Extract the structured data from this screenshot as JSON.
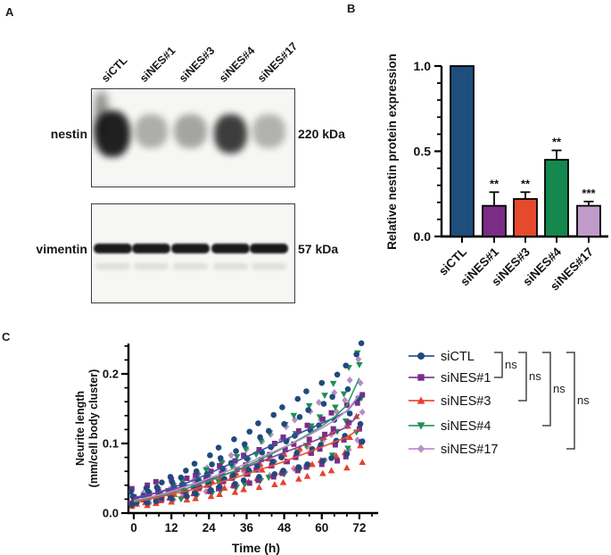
{
  "panels": {
    "a": "A",
    "b": "B",
    "c": "C"
  },
  "panel_a": {
    "lanes": [
      "siCTL",
      "siNES#1",
      "siNES#3",
      "siNES#4",
      "siNES#17"
    ],
    "blots": [
      {
        "protein": "nestin",
        "mw": "220 kDa",
        "style": "smear",
        "band_intensities": [
          0.95,
          0.32,
          0.36,
          0.82,
          0.3
        ]
      },
      {
        "protein": "vimentin",
        "mw": "57 kDa",
        "style": "sharp",
        "band_intensities": [
          0.94,
          0.94,
          0.94,
          0.94,
          0.95
        ]
      }
    ]
  },
  "chart_data": [
    {
      "panel": "B",
      "type": "bar",
      "ylabel": "Relative nestin protein expression",
      "categories": [
        "siCTL",
        "siNES#1",
        "siNES#3",
        "siNES#4",
        "siNES#17"
      ],
      "values": [
        1.0,
        0.18,
        0.22,
        0.45,
        0.18
      ],
      "errors": [
        0,
        0.08,
        0.04,
        0.055,
        0.025
      ],
      "sig": [
        "",
        "**",
        "**",
        "**",
        "***"
      ],
      "colors": [
        "#1d4e7c",
        "#7b2d86",
        "#e54a2d",
        "#14884e",
        "#c09bca"
      ],
      "ylim": [
        0,
        1.0
      ],
      "yticks": [
        0.0,
        0.5,
        1.0
      ],
      "yminor": 0.1,
      "grid": false
    },
    {
      "panel": "C",
      "type": "scatter-line",
      "xlabel": "Time (h)",
      "ylabel_line1": "Neurite length",
      "ylabel_line2": "(mm/cell body cluster)",
      "x": [
        0,
        4,
        8,
        12,
        16,
        20,
        24,
        28,
        32,
        36,
        40,
        44,
        48,
        52,
        56,
        60,
        64,
        68,
        72
      ],
      "xticks": [
        0,
        12,
        24,
        36,
        48,
        60,
        72
      ],
      "xminor_step": 4,
      "xmax_axis": 78,
      "ylim": [
        0,
        0.25
      ],
      "yticks": [
        0.0,
        0.1,
        0.2
      ],
      "yminor": 0.02,
      "grid": false,
      "series": [
        {
          "name": "siCTL",
          "color": "#1f4a7d",
          "line_color": "#34549f",
          "marker": "circle",
          "mean": [
            0.02,
            0.025,
            0.03,
            0.036,
            0.042,
            0.049,
            0.057,
            0.065,
            0.073,
            0.081,
            0.089,
            0.097,
            0.105,
            0.113,
            0.121,
            0.129,
            0.137,
            0.146,
            0.168
          ],
          "replicates": [
            [
              0.031,
              0.036,
              0.044,
              0.052,
              0.061,
              0.071,
              0.083,
              0.094,
              0.106,
              0.117,
              0.129,
              0.141,
              0.152,
              0.164,
              0.175,
              0.187,
              0.199,
              0.212,
              0.244
            ],
            [
              0.024,
              0.031,
              0.037,
              0.044,
              0.051,
              0.06,
              0.07,
              0.079,
              0.089,
              0.099,
              0.109,
              0.118,
              0.128,
              0.138,
              0.148,
              0.157,
              0.167,
              0.178,
              0.228
            ],
            [
              0.02,
              0.025,
              0.029,
              0.035,
              0.041,
              0.048,
              0.056,
              0.064,
              0.072,
              0.079,
              0.087,
              0.095,
              0.103,
              0.111,
              0.119,
              0.126,
              0.134,
              0.143,
              0.165
            ],
            [
              0.015,
              0.019,
              0.023,
              0.027,
              0.032,
              0.037,
              0.043,
              0.049,
              0.055,
              0.062,
              0.068,
              0.074,
              0.08,
              0.086,
              0.092,
              0.098,
              0.104,
              0.111,
              0.128
            ],
            [
              0.012,
              0.015,
              0.017,
              0.021,
              0.024,
              0.028,
              0.033,
              0.038,
              0.042,
              0.047,
              0.052,
              0.056,
              0.061,
              0.066,
              0.07,
              0.075,
              0.079,
              0.085,
              0.103
            ]
          ]
        },
        {
          "name": "siNES#1",
          "color": "#7b2e87",
          "line_color": "#7a3f9d",
          "marker": "square",
          "mean": [
            0.022,
            0.026,
            0.03,
            0.034,
            0.038,
            0.043,
            0.048,
            0.054,
            0.06,
            0.066,
            0.073,
            0.08,
            0.087,
            0.094,
            0.101,
            0.108,
            0.115,
            0.124,
            0.142
          ],
          "replicates": [
            [
              0.035,
              0.04,
              0.045,
              0.048,
              0.05,
              0.054,
              0.06,
              0.068,
              0.075,
              0.083,
              0.091,
              0.1,
              0.109,
              0.118,
              0.126,
              0.135,
              0.144,
              0.155,
              0.17
            ],
            [
              0.023,
              0.027,
              0.032,
              0.036,
              0.04,
              0.045,
              0.05,
              0.057,
              0.063,
              0.069,
              0.077,
              0.084,
              0.091,
              0.099,
              0.106,
              0.113,
              0.121,
              0.13,
              0.158
            ],
            [
              0.019,
              0.022,
              0.026,
              0.029,
              0.032,
              0.037,
              0.041,
              0.046,
              0.051,
              0.056,
              0.062,
              0.068,
              0.074,
              0.08,
              0.086,
              0.092,
              0.098,
              0.105,
              0.121
            ],
            [
              0.014,
              0.017,
              0.02,
              0.022,
              0.025,
              0.028,
              0.031,
              0.035,
              0.039,
              0.043,
              0.047,
              0.052,
              0.057,
              0.061,
              0.066,
              0.07,
              0.075,
              0.081,
              0.102
            ]
          ]
        },
        {
          "name": "siNES#3",
          "color": "#e8402c",
          "line_color": "#e85038",
          "marker": "triangle-up",
          "mean": [
            0.016,
            0.019,
            0.023,
            0.027,
            0.031,
            0.035,
            0.04,
            0.045,
            0.05,
            0.056,
            0.062,
            0.068,
            0.074,
            0.081,
            0.088,
            0.095,
            0.102,
            0.109,
            0.121
          ],
          "replicates": [
            [
              0.018,
              0.022,
              0.026,
              0.031,
              0.036,
              0.04,
              0.046,
              0.052,
              0.058,
              0.064,
              0.071,
              0.078,
              0.085,
              0.093,
              0.101,
              0.109,
              0.117,
              0.125,
              0.139
            ],
            [
              0.016,
              0.019,
              0.023,
              0.027,
              0.031,
              0.035,
              0.04,
              0.045,
              0.05,
              0.056,
              0.062,
              0.068,
              0.074,
              0.081,
              0.088,
              0.095,
              0.102,
              0.109,
              0.121
            ],
            [
              0.013,
              0.015,
              0.018,
              0.022,
              0.025,
              0.028,
              0.032,
              0.036,
              0.04,
              0.045,
              0.05,
              0.054,
              0.059,
              0.065,
              0.07,
              0.076,
              0.082,
              0.087,
              0.097
            ],
            [
              0.01,
              0.011,
              0.014,
              0.016,
              0.019,
              0.021,
              0.024,
              0.027,
              0.03,
              0.034,
              0.037,
              0.041,
              0.044,
              0.049,
              0.053,
              0.057,
              0.061,
              0.065,
              0.073
            ]
          ]
        },
        {
          "name": "siNES#4",
          "color": "#1a9150",
          "line_color": "#2f9e5f",
          "marker": "triangle-down",
          "mean": [
            0.017,
            0.021,
            0.025,
            0.029,
            0.034,
            0.04,
            0.046,
            0.053,
            0.06,
            0.068,
            0.076,
            0.085,
            0.094,
            0.104,
            0.114,
            0.125,
            0.138,
            0.155,
            0.194
          ],
          "replicates": [
            [
              0.023,
              0.028,
              0.034,
              0.039,
              0.046,
              0.054,
              0.062,
              0.072,
              0.081,
              0.092,
              0.103,
              0.115,
              0.127,
              0.14,
              0.154,
              0.169,
              0.186,
              0.209,
              0.23
            ],
            [
              0.019,
              0.023,
              0.028,
              0.032,
              0.037,
              0.044,
              0.051,
              0.058,
              0.066,
              0.075,
              0.084,
              0.094,
              0.103,
              0.114,
              0.125,
              0.138,
              0.152,
              0.171,
              0.213
            ],
            [
              0.014,
              0.018,
              0.021,
              0.025,
              0.029,
              0.034,
              0.039,
              0.045,
              0.051,
              0.058,
              0.065,
              0.072,
              0.08,
              0.088,
              0.097,
              0.106,
              0.117,
              0.132,
              0.165
            ],
            [
              0.01,
              0.013,
              0.015,
              0.017,
              0.02,
              0.024,
              0.028,
              0.032,
              0.036,
              0.041,
              0.046,
              0.051,
              0.056,
              0.062,
              0.068,
              0.075,
              0.083,
              0.093,
              0.116
            ]
          ]
        },
        {
          "name": "siNES#17",
          "color": "#bb8cc6",
          "line_color": "#c18fd0",
          "marker": "diamond",
          "mean": [
            0.018,
            0.022,
            0.026,
            0.031,
            0.037,
            0.043,
            0.05,
            0.057,
            0.064,
            0.071,
            0.079,
            0.087,
            0.095,
            0.103,
            0.112,
            0.122,
            0.133,
            0.147,
            0.17
          ],
          "replicates": [
            [
              0.023,
              0.029,
              0.034,
              0.04,
              0.048,
              0.056,
              0.065,
              0.074,
              0.083,
              0.092,
              0.103,
              0.113,
              0.124,
              0.134,
              0.146,
              0.159,
              0.173,
              0.191,
              0.221
            ],
            [
              0.02,
              0.024,
              0.029,
              0.034,
              0.041,
              0.047,
              0.055,
              0.063,
              0.07,
              0.078,
              0.087,
              0.096,
              0.105,
              0.113,
              0.123,
              0.134,
              0.146,
              0.162,
              0.187
            ],
            [
              0.015,
              0.019,
              0.022,
              0.026,
              0.031,
              0.037,
              0.043,
              0.048,
              0.054,
              0.06,
              0.067,
              0.074,
              0.081,
              0.088,
              0.095,
              0.104,
              0.113,
              0.125,
              0.145
            ],
            [
              0.011,
              0.014,
              0.016,
              0.019,
              0.023,
              0.027,
              0.031,
              0.035,
              0.04,
              0.044,
              0.049,
              0.054,
              0.059,
              0.064,
              0.069,
              0.076,
              0.082,
              0.091,
              0.105
            ]
          ]
        }
      ],
      "legend_comparisons": [
        {
          "a": "siCTL",
          "b": "siNES#1",
          "label": "ns"
        },
        {
          "a": "siCTL",
          "b": "siNES#3",
          "label": "ns"
        },
        {
          "a": "siCTL",
          "b": "siNES#4",
          "label": "ns"
        },
        {
          "a": "siCTL",
          "b": "siNES#17",
          "label": "ns"
        }
      ]
    }
  ]
}
